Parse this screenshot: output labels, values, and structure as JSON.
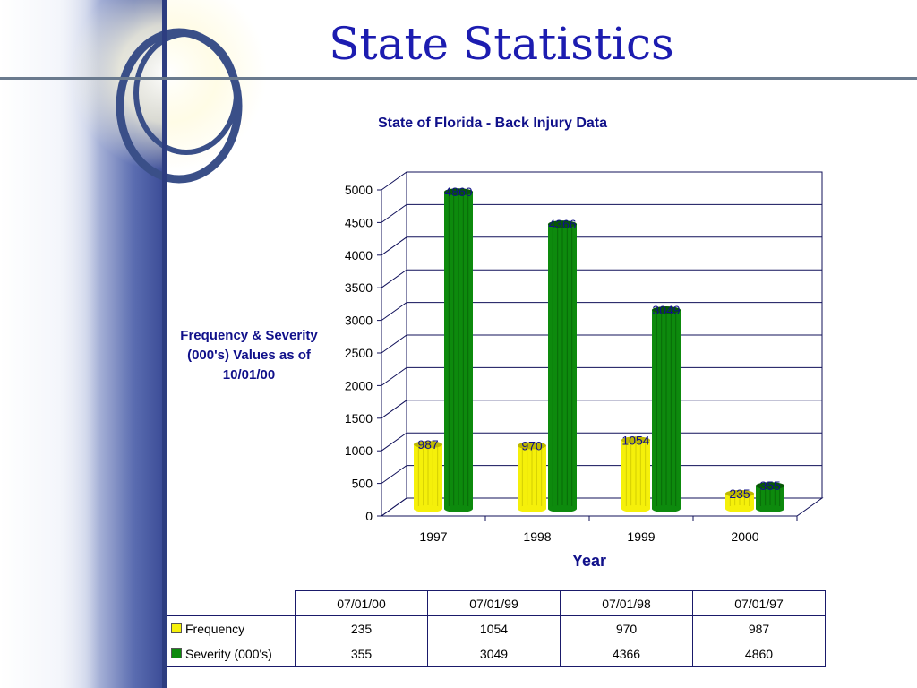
{
  "slide": {
    "title": "State Statistics"
  },
  "colors": {
    "frequency": "#f5f00a",
    "severity": "#0d8a0d",
    "title": "#1c1cb0",
    "sidebar": "#3c4d97"
  },
  "chart_data": {
    "type": "bar",
    "title": "State of Florida - Back Injury Data",
    "ylabel": "Frequency & Severity (000's) Values as of 10/01/00",
    "xlabel": "Year",
    "categories": [
      "1997",
      "1998",
      "1999",
      "2000"
    ],
    "series": [
      {
        "name": "Frequency",
        "values": [
          987,
          970,
          1054,
          235
        ]
      },
      {
        "name": "Severity (000's)",
        "values": [
          4860,
          4366,
          3049,
          355
        ]
      }
    ],
    "ylim": [
      0,
      5000
    ],
    "yticks": [
      "0",
      "500",
      "1000",
      "1500",
      "2000",
      "2500",
      "3000",
      "3500",
      "4000",
      "4500",
      "5000"
    ],
    "grid": true,
    "style": "3d-cylinder"
  },
  "table": {
    "columns": [
      "07/01/00",
      "07/01/99",
      "07/01/98",
      "07/01/97"
    ],
    "rows": [
      {
        "label": "Frequency",
        "values": [
          "235",
          "1054",
          "970",
          "987"
        ]
      },
      {
        "label": "Severity (000's)",
        "values": [
          "355",
          "3049",
          "4366",
          "4860"
        ]
      }
    ]
  }
}
